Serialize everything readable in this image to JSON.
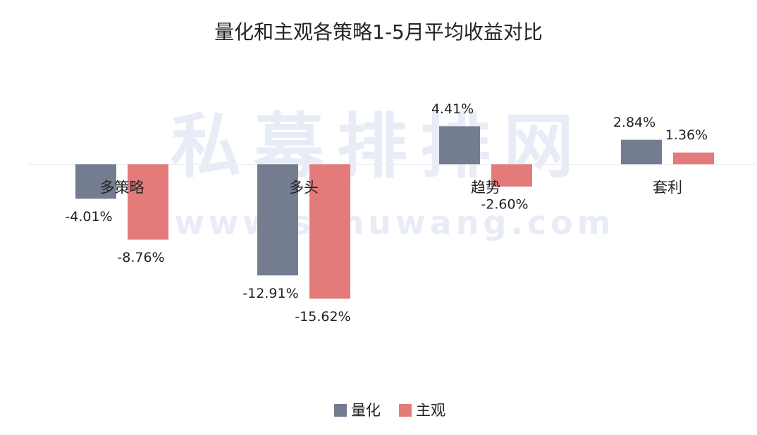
{
  "chart_data": {
    "type": "bar",
    "title": "量化和主观各策略1-5月平均收益对比",
    "watermark": "私募排排网",
    "watermark_url": "www.simuwang.com",
    "categories": [
      "多策略",
      "多头",
      "趋势",
      "套利"
    ],
    "series": [
      {
        "name": "量化",
        "color": "#747c90",
        "values": [
          -4.01,
          -12.91,
          4.41,
          2.84
        ],
        "value_labels": [
          "-4.01%",
          "-12.91%",
          "4.41%",
          "2.84%"
        ]
      },
      {
        "name": "主观",
        "color": "#e47b7b",
        "values": [
          -8.76,
          -15.62,
          -2.6,
          1.36
        ],
        "value_labels": [
          "-8.76%",
          "-15.62%",
          "-2.60%",
          "1.36%"
        ]
      }
    ],
    "ylim": [
      -20,
      10
    ],
    "legend": "bottom"
  }
}
